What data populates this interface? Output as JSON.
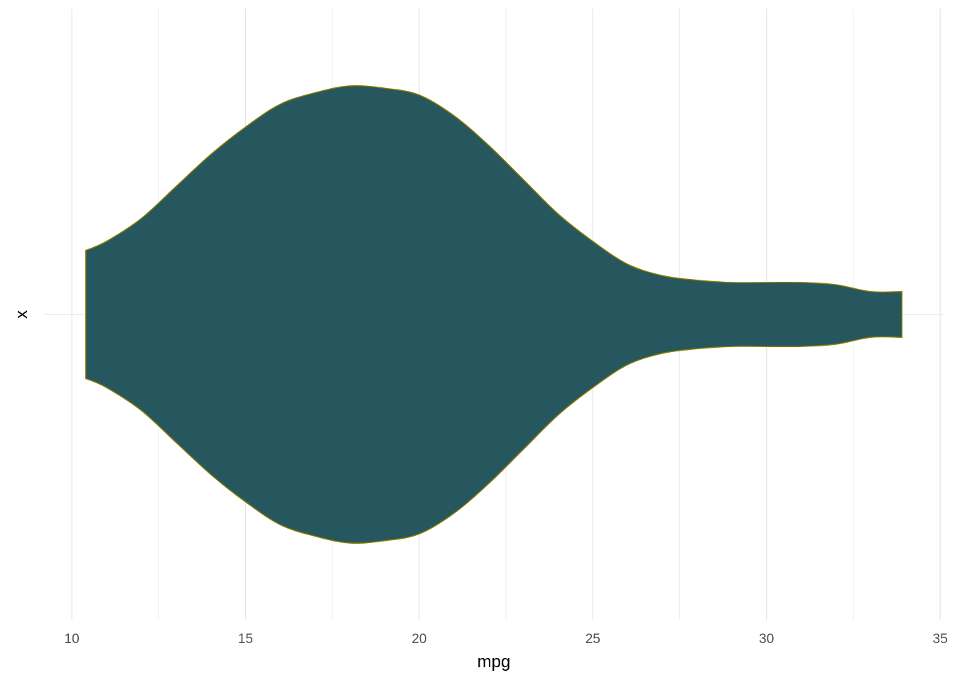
{
  "chart_data": {
    "type": "violin",
    "title": "",
    "xlabel": "mpg",
    "ylabel": "x",
    "xlim": [
      9.2,
      35.1
    ],
    "x_ticks": [
      10,
      15,
      20,
      25,
      30,
      35
    ],
    "y_categories": [
      ""
    ],
    "grid": true,
    "fill_color": "#26575E",
    "outline_color": "#8B7D00",
    "series": [
      {
        "min": 10.4,
        "max": 33.9,
        "density_profile": [
          [
            10.4,
            0.28
          ],
          [
            11.0,
            0.32
          ],
          [
            12.0,
            0.42
          ],
          [
            13.0,
            0.56
          ],
          [
            14.0,
            0.7
          ],
          [
            15.0,
            0.82
          ],
          [
            16.0,
            0.92
          ],
          [
            17.0,
            0.97
          ],
          [
            18.0,
            1.0
          ],
          [
            19.0,
            0.99
          ],
          [
            20.0,
            0.96
          ],
          [
            21.0,
            0.87
          ],
          [
            22.0,
            0.74
          ],
          [
            23.0,
            0.59
          ],
          [
            24.0,
            0.44
          ],
          [
            25.0,
            0.32
          ],
          [
            26.0,
            0.22
          ],
          [
            27.0,
            0.17
          ],
          [
            28.0,
            0.15
          ],
          [
            29.0,
            0.14
          ],
          [
            30.0,
            0.14
          ],
          [
            31.0,
            0.14
          ],
          [
            32.0,
            0.13
          ],
          [
            33.0,
            0.1
          ],
          [
            33.9,
            0.1
          ]
        ]
      }
    ]
  }
}
